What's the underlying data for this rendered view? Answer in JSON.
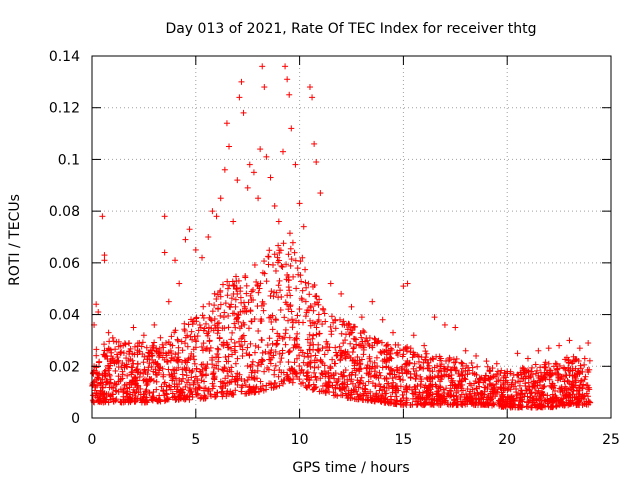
{
  "chart_data": {
    "type": "scatter",
    "title": "Day 013 of 2021, Rate Of TEC Index for receiver thtg",
    "xlabel": "GPS time / hours",
    "ylabel": "ROTI / TECUs",
    "xlim": [
      0,
      25
    ],
    "ylim": [
      0,
      0.14
    ],
    "xticks": [
      "0",
      "5",
      "10",
      "15",
      "20",
      "25"
    ],
    "yticks": [
      "0",
      "0.02",
      "0.04",
      "0.06",
      "0.08",
      "0.1",
      "0.12",
      "0.14"
    ],
    "xtick_values": [
      0,
      5,
      10,
      15,
      20,
      25
    ],
    "ytick_values": [
      0,
      0.02,
      0.04,
      0.06,
      0.08,
      0.1,
      0.12,
      0.14
    ],
    "grid": true,
    "marker": "+",
    "color": "#ff0000",
    "series": [
      {
        "name": "ROTI",
        "points": [
          [
            0.1,
            0.02
          ],
          [
            0.1,
            0.036
          ],
          [
            0.2,
            0.044
          ],
          [
            0.3,
            0.041
          ],
          [
            0.5,
            0.078
          ],
          [
            0.6,
            0.063
          ],
          [
            0.6,
            0.061
          ],
          [
            0.8,
            0.033
          ],
          [
            1.0,
            0.031
          ],
          [
            1.5,
            0.028
          ],
          [
            2.0,
            0.035
          ],
          [
            2.5,
            0.032
          ],
          [
            3.0,
            0.036
          ],
          [
            3.5,
            0.078
          ],
          [
            3.5,
            0.064
          ],
          [
            3.7,
            0.045
          ],
          [
            4.0,
            0.061
          ],
          [
            4.2,
            0.052
          ],
          [
            4.5,
            0.069
          ],
          [
            4.7,
            0.073
          ],
          [
            5.0,
            0.065
          ],
          [
            5.3,
            0.062
          ],
          [
            5.6,
            0.07
          ],
          [
            5.8,
            0.08
          ],
          [
            6.0,
            0.078
          ],
          [
            6.2,
            0.085
          ],
          [
            6.4,
            0.096
          ],
          [
            6.5,
            0.114
          ],
          [
            6.6,
            0.105
          ],
          [
            6.8,
            0.076
          ],
          [
            7.0,
            0.092
          ],
          [
            7.1,
            0.124
          ],
          [
            7.2,
            0.13
          ],
          [
            7.3,
            0.118
          ],
          [
            7.5,
            0.089
          ],
          [
            7.6,
            0.098
          ],
          [
            7.8,
            0.095
          ],
          [
            8.0,
            0.085
          ],
          [
            8.1,
            0.104
          ],
          [
            8.2,
            0.136
          ],
          [
            8.3,
            0.128
          ],
          [
            8.4,
            0.101
          ],
          [
            8.6,
            0.093
          ],
          [
            8.8,
            0.082
          ],
          [
            9.0,
            0.076
          ],
          [
            9.2,
            0.103
          ],
          [
            9.3,
            0.136
          ],
          [
            9.4,
            0.131
          ],
          [
            9.5,
            0.125
          ],
          [
            9.6,
            0.112
          ],
          [
            9.8,
            0.098
          ],
          [
            10.0,
            0.083
          ],
          [
            10.2,
            0.074
          ],
          [
            10.5,
            0.128
          ],
          [
            10.6,
            0.124
          ],
          [
            10.7,
            0.106
          ],
          [
            10.8,
            0.099
          ],
          [
            11.0,
            0.087
          ],
          [
            11.5,
            0.052
          ],
          [
            12.0,
            0.048
          ],
          [
            12.5,
            0.043
          ],
          [
            13.0,
            0.039
          ],
          [
            13.5,
            0.045
          ],
          [
            14.0,
            0.038
          ],
          [
            14.5,
            0.033
          ],
          [
            15.0,
            0.051
          ],
          [
            15.2,
            0.052
          ],
          [
            15.5,
            0.032
          ],
          [
            16.0,
            0.028
          ],
          [
            16.5,
            0.039
          ],
          [
            17.0,
            0.036
          ],
          [
            17.5,
            0.035
          ],
          [
            18.0,
            0.026
          ],
          [
            18.5,
            0.024
          ],
          [
            19.0,
            0.022
          ],
          [
            19.5,
            0.021
          ],
          [
            20.0,
            0.018
          ],
          [
            20.5,
            0.025
          ],
          [
            21.0,
            0.023
          ],
          [
            21.5,
            0.026
          ],
          [
            22.0,
            0.027
          ],
          [
            22.5,
            0.028
          ],
          [
            23.0,
            0.03
          ],
          [
            23.5,
            0.027
          ],
          [
            23.9,
            0.029
          ]
        ]
      }
    ],
    "envelope": {
      "description": "approximate density band of the dense point cloud (hours, ROTI)",
      "hours": [
        0,
        1,
        2,
        3,
        4,
        5,
        6,
        7,
        8,
        9,
        9.5,
        10,
        10.5,
        11,
        12,
        13,
        14,
        15,
        16,
        17,
        18,
        19,
        20,
        21,
        22,
        23,
        24
      ],
      "low": [
        0.006,
        0.006,
        0.006,
        0.006,
        0.007,
        0.007,
        0.008,
        0.009,
        0.01,
        0.012,
        0.014,
        0.013,
        0.011,
        0.01,
        0.008,
        0.007,
        0.006,
        0.005,
        0.005,
        0.005,
        0.005,
        0.005,
        0.004,
        0.004,
        0.004,
        0.005,
        0.005
      ],
      "high": [
        0.028,
        0.03,
        0.03,
        0.03,
        0.034,
        0.04,
        0.05,
        0.056,
        0.062,
        0.07,
        0.072,
        0.066,
        0.056,
        0.046,
        0.038,
        0.034,
        0.03,
        0.028,
        0.026,
        0.024,
        0.022,
        0.02,
        0.018,
        0.02,
        0.022,
        0.024,
        0.024
      ]
    }
  }
}
